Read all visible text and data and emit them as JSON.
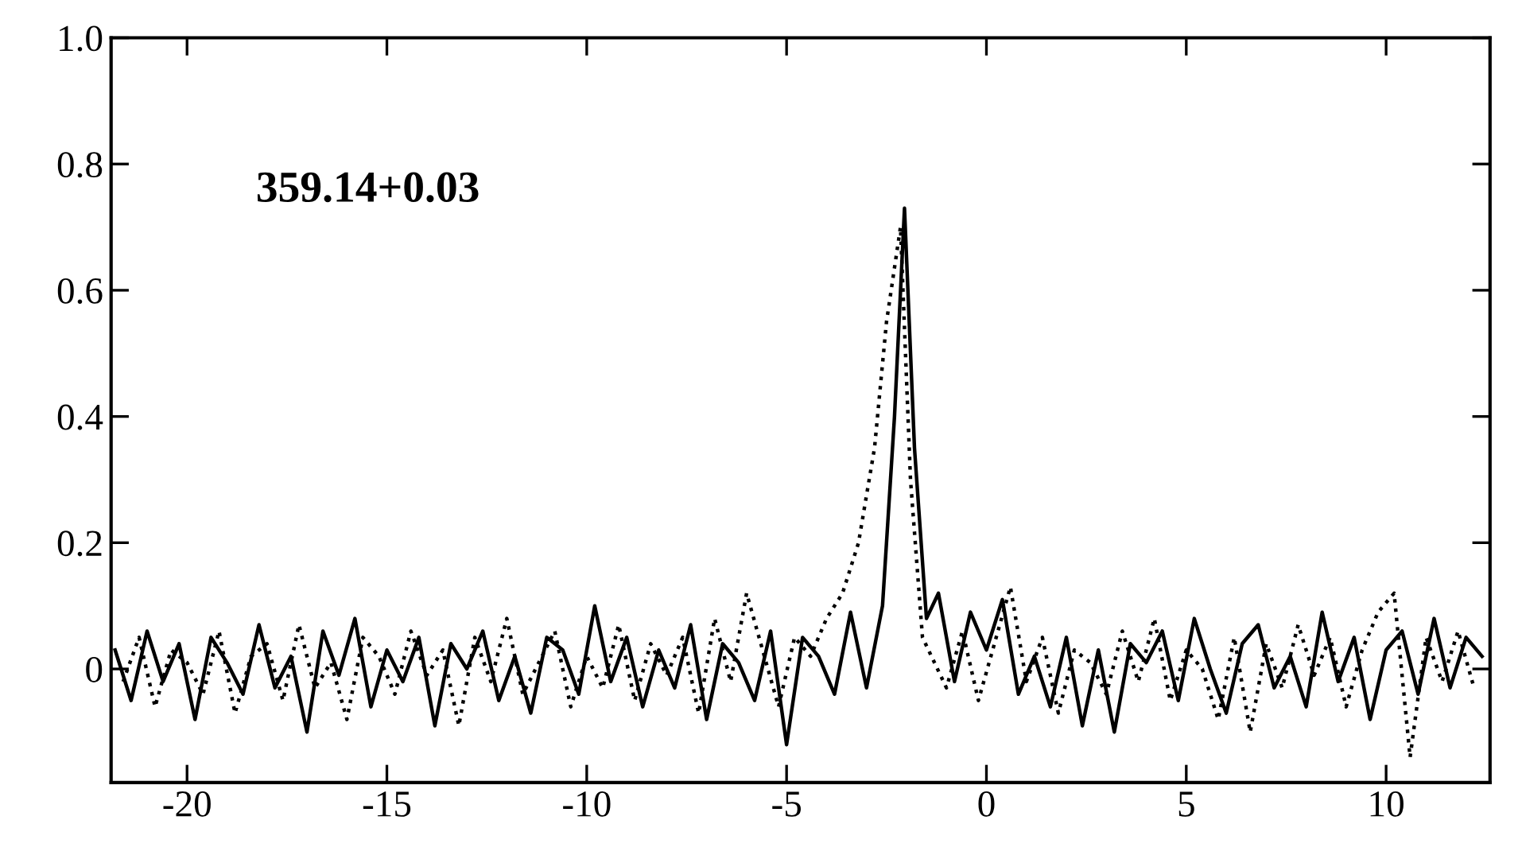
{
  "chart_data": {
    "type": "line",
    "annotations": [
      "359.14+0.03"
    ],
    "xlim": [
      -21.9,
      12.6
    ],
    "xticks": [
      -20,
      -15,
      -10,
      -5,
      0,
      5,
      10
    ],
    "ylim": [
      -0.18,
      1.0
    ],
    "yticks": [
      0,
      0.2,
      0.4,
      0.6,
      0.8,
      {
        "value": 1.0,
        "label": "1.0"
      }
    ],
    "grid": false,
    "legend": false,
    "marker": "none",
    "series": [
      {
        "color": "#000000",
        "line_style": "solid",
        "x": [
          -21.8,
          -21.4,
          -21.0,
          -20.6,
          -20.2,
          -19.8,
          -19.4,
          -19.0,
          -18.6,
          -18.2,
          -17.8,
          -17.4,
          -17.0,
          -16.6,
          -16.2,
          -15.8,
          -15.4,
          -15.0,
          -14.6,
          -14.2,
          -13.8,
          -13.4,
          -13.0,
          -12.6,
          -12.2,
          -11.8,
          -11.4,
          -11.0,
          -10.6,
          -10.2,
          -9.8,
          -9.4,
          -9.0,
          -8.6,
          -8.2,
          -7.8,
          -7.4,
          -7.0,
          -6.6,
          -6.2,
          -5.8,
          -5.4,
          -5.0,
          -4.6,
          -4.2,
          -3.8,
          -3.4,
          -3.0,
          -2.6,
          -2.3,
          -2.05,
          -1.8,
          -1.5,
          -1.2,
          -0.8,
          -0.4,
          0.0,
          0.4,
          0.8,
          1.2,
          1.6,
          2.0,
          2.4,
          2.8,
          3.2,
          3.6,
          4.0,
          4.4,
          4.8,
          5.2,
          5.6,
          6.0,
          6.4,
          6.8,
          7.2,
          7.6,
          8.0,
          8.4,
          8.8,
          9.2,
          9.6,
          10.0,
          10.4,
          10.8,
          11.2,
          11.6,
          12.0,
          12.4
        ],
        "values": [
          0.03,
          -0.05,
          0.06,
          -0.02,
          0.04,
          -0.08,
          0.05,
          0.01,
          -0.04,
          0.07,
          -0.03,
          0.02,
          -0.1,
          0.06,
          -0.01,
          0.08,
          -0.06,
          0.03,
          -0.02,
          0.05,
          -0.09,
          0.04,
          0.0,
          0.06,
          -0.05,
          0.02,
          -0.07,
          0.05,
          0.03,
          -0.04,
          0.1,
          -0.02,
          0.05,
          -0.06,
          0.03,
          -0.03,
          0.07,
          -0.08,
          0.04,
          0.01,
          -0.05,
          0.06,
          -0.12,
          0.05,
          0.02,
          -0.04,
          0.09,
          -0.03,
          0.1,
          0.4,
          0.73,
          0.35,
          0.08,
          0.12,
          -0.02,
          0.09,
          0.03,
          0.11,
          -0.04,
          0.02,
          -0.06,
          0.05,
          -0.09,
          0.03,
          -0.1,
          0.04,
          0.01,
          0.06,
          -0.05,
          0.08,
          0.0,
          -0.07,
          0.04,
          0.07,
          -0.03,
          0.02,
          -0.06,
          0.09,
          -0.02,
          0.05,
          -0.08,
          0.03,
          0.06,
          -0.04,
          0.08,
          -0.03,
          0.05,
          0.02
        ]
      },
      {
        "color": "#000000",
        "line_style": "dotted",
        "x": [
          -21.6,
          -21.2,
          -20.8,
          -20.4,
          -20.0,
          -19.6,
          -19.2,
          -18.8,
          -18.4,
          -18.0,
          -17.6,
          -17.2,
          -16.8,
          -16.4,
          -16.0,
          -15.6,
          -15.2,
          -14.8,
          -14.4,
          -14.0,
          -13.6,
          -13.2,
          -12.8,
          -12.4,
          -12.0,
          -11.6,
          -11.2,
          -10.8,
          -10.4,
          -10.0,
          -9.6,
          -9.2,
          -8.8,
          -8.4,
          -8.0,
          -7.6,
          -7.2,
          -6.8,
          -6.4,
          -6.0,
          -5.6,
          -5.2,
          -4.8,
          -4.4,
          -4.0,
          -3.6,
          -3.2,
          -2.8,
          -2.5,
          -2.15,
          -1.9,
          -1.6,
          -1.0,
          -0.6,
          -0.2,
          0.2,
          0.6,
          1.0,
          1.4,
          1.8,
          2.2,
          2.6,
          3.0,
          3.4,
          3.8,
          4.2,
          4.6,
          5.0,
          5.4,
          5.8,
          6.2,
          6.6,
          7.0,
          7.4,
          7.8,
          8.2,
          8.6,
          9.0,
          9.4,
          9.8,
          10.2,
          10.6,
          11.0,
          11.4,
          11.8,
          12.2
        ],
        "values": [
          -0.02,
          0.05,
          -0.06,
          0.03,
          0.01,
          -0.04,
          0.06,
          -0.07,
          0.02,
          0.04,
          -0.05,
          0.07,
          -0.03,
          0.01,
          -0.08,
          0.05,
          0.02,
          -0.04,
          0.06,
          -0.01,
          0.03,
          -0.09,
          0.05,
          -0.02,
          0.08,
          -0.04,
          0.01,
          0.06,
          -0.06,
          0.02,
          -0.03,
          0.07,
          -0.05,
          0.04,
          -0.01,
          0.05,
          -0.07,
          0.08,
          -0.02,
          0.12,
          0.03,
          -0.06,
          0.05,
          0.02,
          0.08,
          0.12,
          0.2,
          0.35,
          0.55,
          0.7,
          0.3,
          0.05,
          -0.03,
          0.06,
          -0.05,
          0.04,
          0.13,
          -0.02,
          0.05,
          -0.07,
          0.03,
          0.01,
          -0.04,
          0.06,
          -0.02,
          0.08,
          -0.05,
          0.03,
          0.0,
          -0.08,
          0.05,
          -0.1,
          0.04,
          -0.03,
          0.07,
          -0.01,
          0.05,
          -0.06,
          0.03,
          0.09,
          0.12,
          -0.14,
          0.05,
          -0.02,
          0.06,
          -0.03
        ]
      }
    ]
  }
}
